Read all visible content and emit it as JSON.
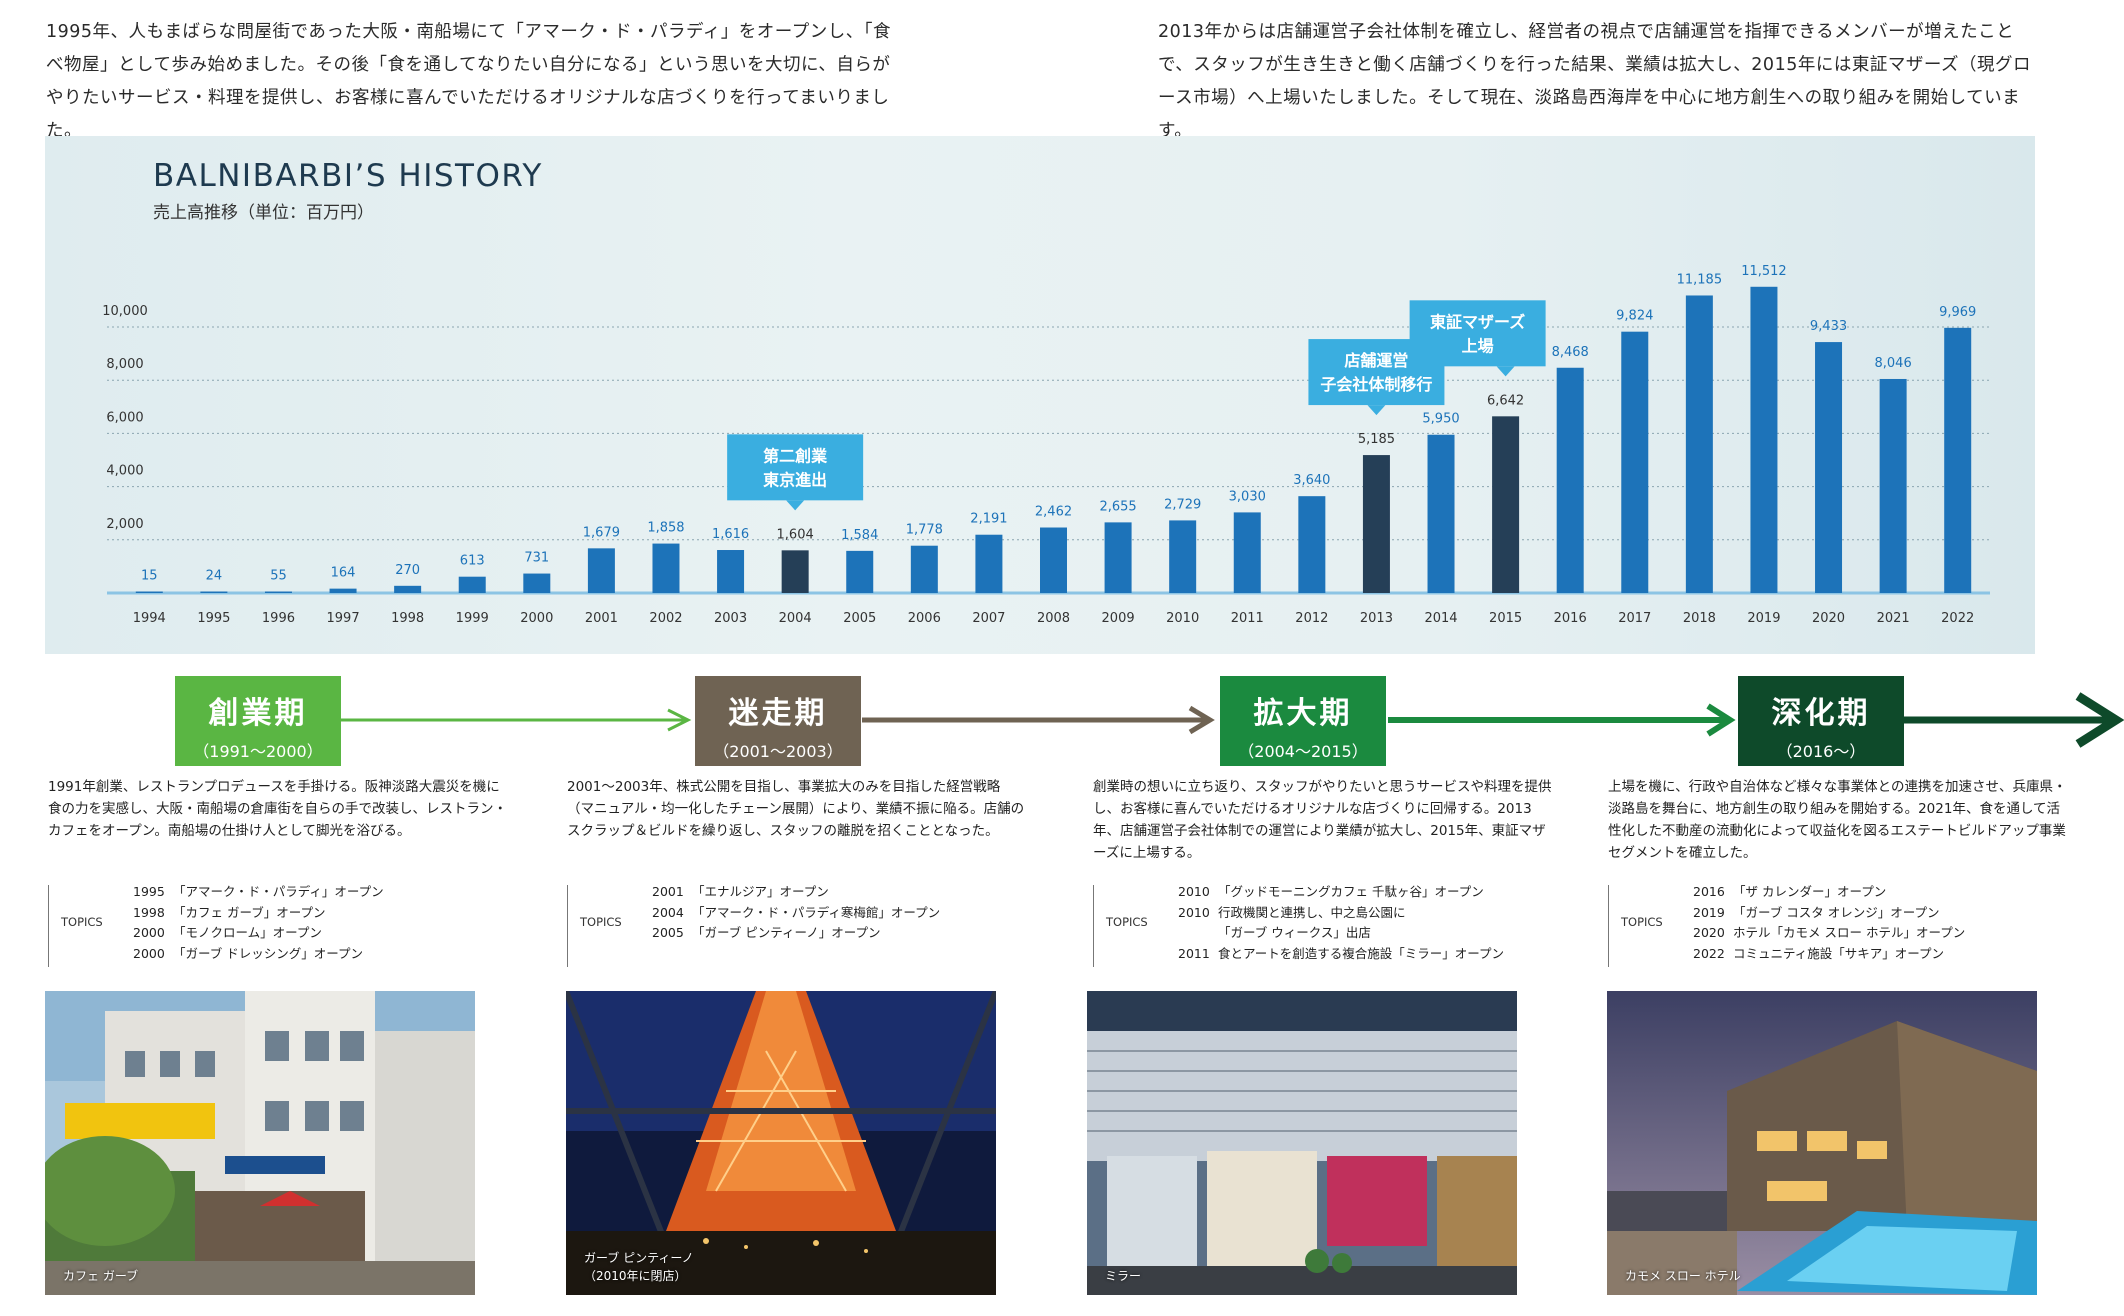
{
  "intro": {
    "left": "1995年、人もまばらな問屋街であった大阪・南船場にて「アマーク・ド・パラディ」をオープンし、「食べ物屋」として歩み始めました。その後「食を通してなりたい自分になる」という思いを大切に、自らがやりたいサービス・料理を提供し、お客様に喜んでいただけるオリジナルな店づくりを行ってまいりました。",
    "right": "2013年からは店舗運営子会社体制を確立し、経営者の視点で店舗運営を指揮できるメンバーが増えたことで、スタッフが生き生きと働く店舗づくりを行った結果、業績は拡大し、2015年には東証マザーズ（現グロース市場）へ上場いたしました。そして現在、淡路島西海岸を中心に地方創生への取り組みを開始しています。"
  },
  "chart_data": {
    "type": "bar",
    "title": "BALNIBARBI’S HISTORY",
    "subtitle": "売上高推移（単位：百万円）",
    "categories": [
      "1994",
      "1995",
      "1996",
      "1997",
      "1998",
      "1999",
      "2000",
      "2001",
      "2002",
      "2003",
      "2004",
      "2005",
      "2006",
      "2007",
      "2008",
      "2009",
      "2010",
      "2011",
      "2012",
      "2013",
      "2014",
      "2015",
      "2016",
      "2017",
      "2018",
      "2019",
      "2020",
      "2021",
      "2022"
    ],
    "values": [
      15,
      24,
      55,
      164,
      270,
      613,
      731,
      1679,
      1858,
      1616,
      1604,
      1584,
      1778,
      2191,
      2462,
      2655,
      2729,
      3030,
      3640,
      5185,
      5950,
      6642,
      8468,
      9824,
      11185,
      11512,
      9433,
      8046,
      9969
    ],
    "value_labels": [
      "15",
      "24",
      "55",
      "164",
      "270",
      "613",
      "731",
      "1,679",
      "1,858",
      "1,616",
      "1,604",
      "1,584",
      "1,778",
      "2,191",
      "2,462",
      "2,655",
      "2,729",
      "3,030",
      "3,640",
      "5,185",
      "5,950",
      "6,642",
      "8,468",
      "9,824",
      "11,185",
      "11,512",
      "9,433",
      "8,046",
      "9,969"
    ],
    "highlighted": [
      "2004",
      "2013",
      "2015"
    ],
    "y_ticks": [
      {
        "value": 2000,
        "label": "2,000"
      },
      {
        "value": 4000,
        "label": "4,000"
      },
      {
        "value": 6000,
        "label": "6,000"
      },
      {
        "value": 8000,
        "label": "8,000"
      },
      {
        "value": 10000,
        "label": "10,000"
      }
    ],
    "ylim": [
      0,
      11512
    ],
    "grid": true,
    "colors": {
      "bar": "#1d73b9",
      "highlight": "#253f57",
      "label": "#1d73b9",
      "grid": "#8aa5b0",
      "axis": "#8cc4e4",
      "callout": "#3aaee0"
    },
    "callouts": [
      {
        "text": [
          "第二創業",
          "東京進出"
        ],
        "year": "2004"
      },
      {
        "text": [
          "店舗運営",
          "子会社体制移行"
        ],
        "year": "2013"
      },
      {
        "text": [
          "東証マザーズ",
          "上場"
        ],
        "year": "2015"
      }
    ]
  },
  "phases": [
    {
      "name": "創業期",
      "years": "（1991～2000）",
      "color": "#5ab643",
      "desc": "1991年創業、レストランプロデュースを手掛ける。阪神淡路大震災を機に食の力を実感し、大阪・南船場の倉庫街を自らの手で改装し、レストラン・カフェをオープン。南船場の仕掛け人として脚光を浴びる。",
      "topics": [
        {
          "y": "1995",
          "t": "「アマーク・ド・パラディ」オープン"
        },
        {
          "y": "1998",
          "t": "「カフェ ガーブ」オープン"
        },
        {
          "y": "2000",
          "t": "「モノクローム」オープン"
        },
        {
          "y": "2000",
          "t": "「ガーブ ドレッシング」オープン"
        }
      ],
      "caption": "カフェ ガーブ"
    },
    {
      "name": "迷走期",
      "years": "（2001～2003）",
      "color": "#6f6353",
      "desc": "2001～2003年、株式公開を目指し、事業拡大のみを目指した経営戦略（マニュアル・均一化したチェーン展開）により、業績不振に陥る。店舗のスクラップ＆ビルドを繰り返し、スタッフの離脱を招くこととなった。",
      "topics": [
        {
          "y": "2001",
          "t": "「エナルジア」オープン"
        },
        {
          "y": "2004",
          "t": "「アマーク・ド・パラディ寒梅館」オープン"
        },
        {
          "y": "2005",
          "t": "「ガーブ ピンティーノ」オープン"
        }
      ],
      "caption": "ガーブ ピンティーノ\n（2010年に閉店）"
    },
    {
      "name": "拡大期",
      "years": "（2004～2015）",
      "color": "#1b8a3f",
      "desc": "創業時の想いに立ち返り、スタッフがやりたいと思うサービスや料理を提供し、お客様に喜んでいただけるオリジナルな店づくりに回帰する。2013年、店舗運営子会社体制での運営により業績が拡大し、2015年、東証マザーズに上場する。",
      "topics": [
        {
          "y": "2010",
          "t": "「グッドモーニングカフェ 千駄ヶ谷」オープン"
        },
        {
          "y": "2010",
          "t": "行政機関と連携し、中之島公園に"
        },
        {
          "y": "",
          "t": "「ガーブ ウィークス」出店"
        },
        {
          "y": "2011",
          "t": "食とアートを創造する複合施設「ミラー」オープン"
        }
      ],
      "caption": "ミラー"
    },
    {
      "name": "深化期",
      "years": "（2016～）",
      "color": "#0e4a2a",
      "desc": "上場を機に、行政や自治体など様々な事業体との連携を加速させ、兵庫県・淡路島を舞台に、地方創生の取り組みを開始する。2021年、食を通して活性化した不動産の流動化によって収益化を図るエステートビルドアップ事業セグメントを確立した。",
      "topics": [
        {
          "y": "2016",
          "t": "「ザ カレンダー」オープン"
        },
        {
          "y": "2019",
          "t": "「ガーブ コスタ オレンジ」オープン"
        },
        {
          "y": "2020",
          "t": "ホテル「カモメ スロー ホテル」オープン"
        },
        {
          "y": "2022",
          "t": "コミュニティ施設「サキア」オープン"
        }
      ],
      "caption": "カモメ スロー ホテル"
    }
  ],
  "topics_label": "TOPICS"
}
